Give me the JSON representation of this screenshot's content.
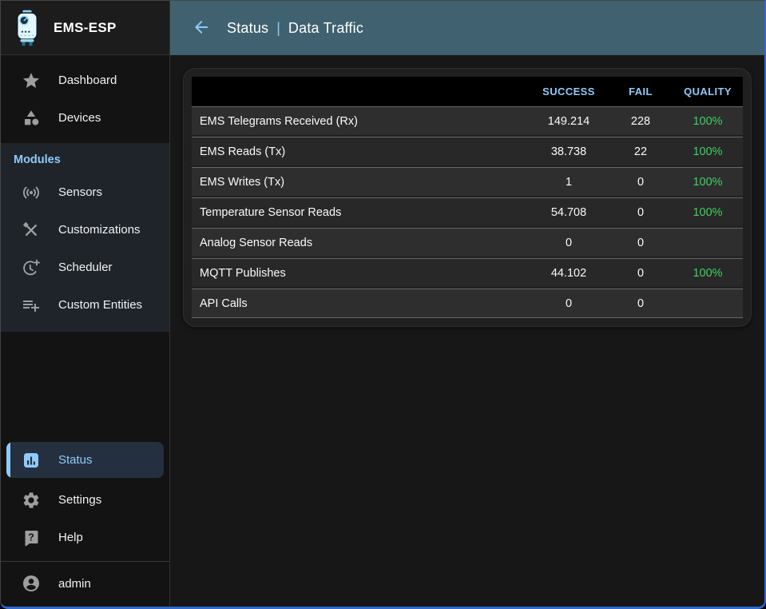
{
  "window": {
    "app_title": "EMS-ESP"
  },
  "appbar": {
    "section": "Status",
    "separator": "|",
    "page_title": "Data Traffic",
    "back_icon": "arrow-back-icon"
  },
  "sidebar": {
    "top_items": [
      {
        "label": "Dashboard",
        "icon": "star-icon"
      },
      {
        "label": "Devices",
        "icon": "category-icon"
      }
    ],
    "modules_label": "Modules",
    "module_items": [
      {
        "label": "Sensors",
        "icon": "sensors-icon"
      },
      {
        "label": "Customizations",
        "icon": "tools-icon"
      },
      {
        "label": "Scheduler",
        "icon": "clock-plus-icon"
      },
      {
        "label": "Custom Entities",
        "icon": "playlist-add-icon"
      }
    ],
    "bottom_items": [
      {
        "label": "Status",
        "icon": "bar-chart-icon",
        "selected": true
      },
      {
        "label": "Settings",
        "icon": "gear-icon",
        "selected": false
      },
      {
        "label": "Help",
        "icon": "help-icon",
        "selected": false
      }
    ],
    "user": {
      "label": "admin",
      "icon": "account-circle-icon"
    }
  },
  "table": {
    "columns": {
      "name": "",
      "success": "SUCCESS",
      "fail": "FAIL",
      "quality": "QUALITY"
    },
    "rows": [
      {
        "name": "EMS Telegrams Received (Rx)",
        "success": "149.214",
        "fail": "228",
        "quality": "100%"
      },
      {
        "name": "EMS Reads (Tx)",
        "success": "38.738",
        "fail": "22",
        "quality": "100%"
      },
      {
        "name": "EMS Writes (Tx)",
        "success": "1",
        "fail": "0",
        "quality": "100%"
      },
      {
        "name": "Temperature Sensor Reads",
        "success": "54.708",
        "fail": "0",
        "quality": "100%"
      },
      {
        "name": "Analog Sensor Reads",
        "success": "0",
        "fail": "0",
        "quality": ""
      },
      {
        "name": "MQTT Publishes",
        "success": "44.102",
        "fail": "0",
        "quality": "100%"
      },
      {
        "name": "API Calls",
        "success": "0",
        "fail": "0",
        "quality": ""
      }
    ]
  },
  "colors": {
    "accent": "#90caf9",
    "appbar_bg": "#40616f",
    "quality_green": "#3ed163",
    "sidebar_selected_bg": "#243040"
  }
}
